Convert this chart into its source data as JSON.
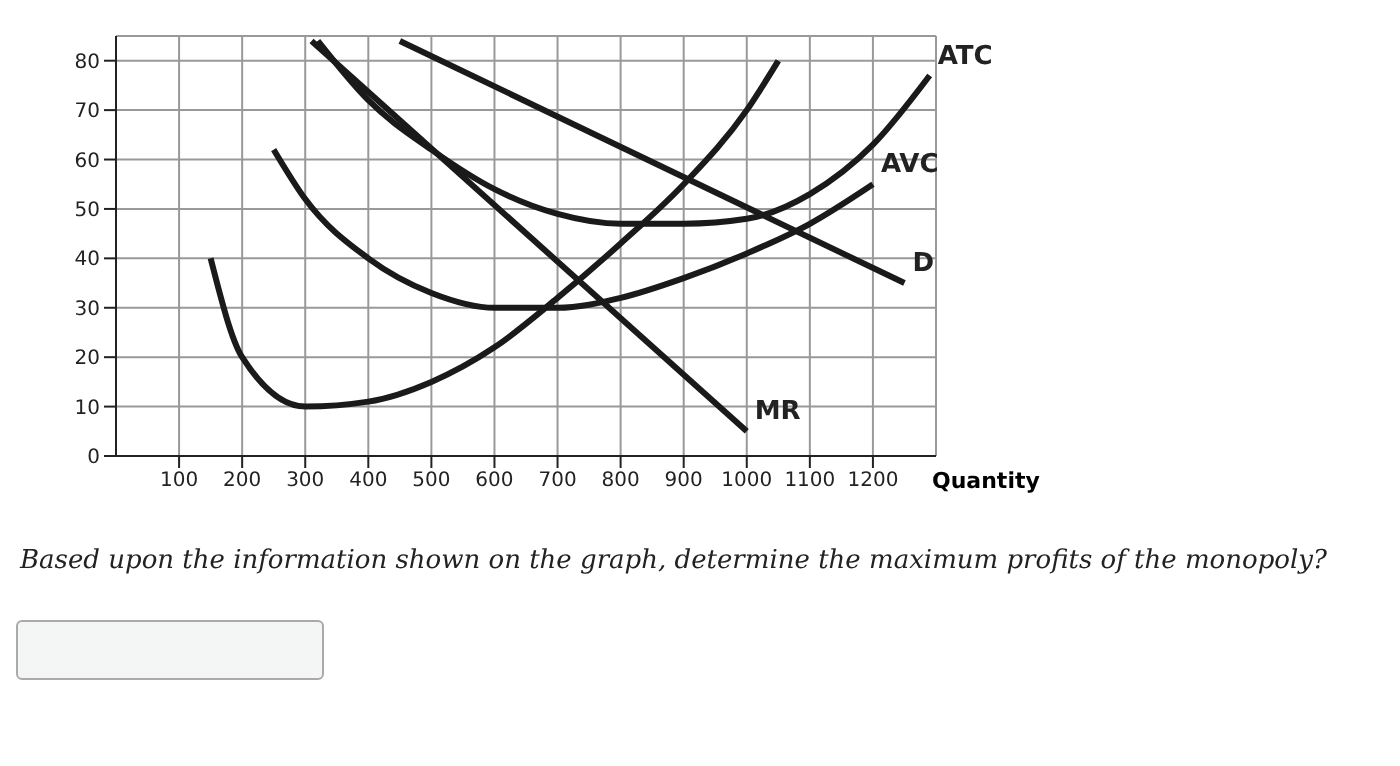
{
  "chart_data": {
    "type": "line",
    "xlabel": "Quantity",
    "xlim": [
      0,
      1300
    ],
    "ylim": [
      0,
      85
    ],
    "xticks": [
      100,
      200,
      300,
      400,
      500,
      600,
      700,
      800,
      900,
      1000,
      1100,
      1200
    ],
    "yticks": [
      0,
      10,
      20,
      30,
      40,
      50,
      60,
      70,
      80
    ],
    "grid": true,
    "marker": "none",
    "line_style": "solid",
    "series": [
      {
        "color": "#1a1a1a",
        "x": [
          150,
          200,
          300,
          400,
          500,
          600,
          700,
          800,
          900,
          1000,
          1050
        ],
        "values": [
          40,
          20,
          10,
          11,
          15,
          22,
          32,
          43,
          55,
          70,
          80
        ]
      },
      {
        "name": "ATC",
        "color": "#1a1a1a",
        "x": [
          320,
          400,
          500,
          600,
          700,
          800,
          900,
          1000,
          1100,
          1200,
          1290
        ],
        "values": [
          84,
          72,
          62,
          54,
          49,
          47,
          47,
          48,
          53,
          63,
          77
        ]
      },
      {
        "name": "AVC",
        "color": "#1a1a1a",
        "x": [
          250,
          300,
          400,
          500,
          600,
          700,
          800,
          900,
          1000,
          1100,
          1200
        ],
        "values": [
          62,
          52,
          40,
          33,
          30,
          30,
          32,
          36,
          41,
          47,
          55
        ]
      },
      {
        "name": "D",
        "color": "#1a1a1a",
        "x": [
          450,
          1250
        ],
        "values": [
          84,
          35
        ]
      },
      {
        "name": "MR",
        "color": "#1a1a1a",
        "x": [
          310,
          1000
        ],
        "values": [
          84,
          5
        ]
      }
    ],
    "annotations": [
      "Based upon the information shown on the graph, determine the maximum profits of the monopoly?"
    ]
  }
}
